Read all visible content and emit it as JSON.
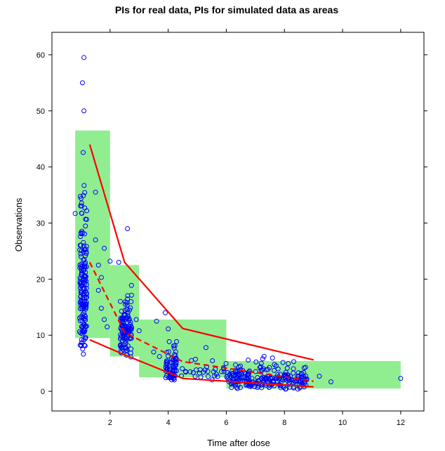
{
  "chart_data": {
    "type": "scatter",
    "title": "PIs for real data, PIs for simulated data as areas",
    "xlabel": "Time after dose",
    "ylabel": "Observations",
    "xlim": [
      0.0,
      12.8
    ],
    "ylim": [
      -3.5,
      64.0
    ],
    "x_ticks": [
      2,
      4,
      6,
      8,
      10,
      12
    ],
    "y_ticks": [
      0,
      10,
      20,
      30,
      40,
      50,
      60
    ],
    "colors": {
      "points": "#0000ff",
      "lines": "#ff0000",
      "areas": "#90ee90"
    },
    "simulated_pi_areas": [
      {
        "x": [
          0.8,
          2.0
        ],
        "y": [
          9.5,
          46.5
        ]
      },
      {
        "x": [
          2.0,
          3.0
        ],
        "y": [
          6.2,
          22.5
        ]
      },
      {
        "x": [
          3.0,
          6.0
        ],
        "y": [
          2.5,
          12.8
        ]
      },
      {
        "x": [
          6.0,
          12.0
        ],
        "y": [
          0.5,
          5.4
        ]
      }
    ],
    "real_data_pi_lines": [
      {
        "name": "upper",
        "style": "solid",
        "x": [
          1.3,
          2.5,
          4.5,
          9.0
        ],
        "y": [
          44.0,
          23.0,
          11.2,
          5.6
        ]
      },
      {
        "name": "median",
        "style": "dashed",
        "x": [
          1.3,
          2.5,
          4.5,
          9.0
        ],
        "y": [
          23.0,
          10.5,
          5.3,
          1.8
        ]
      },
      {
        "name": "lower",
        "style": "solid",
        "x": [
          1.3,
          2.5,
          4.5,
          9.0
        ],
        "y": [
          9.2,
          6.5,
          2.3,
          0.8
        ]
      }
    ],
    "observation_clusters": [
      {
        "x": [
          0.95,
          1.2
        ],
        "y": [
          6.3,
          44.5
        ],
        "n": 170
      },
      {
        "x": [
          2.35,
          2.75
        ],
        "y": [
          5.8,
          23.0
        ],
        "n": 110
      },
      {
        "x": [
          3.9,
          4.3
        ],
        "y": [
          1.8,
          11.5
        ],
        "n": 70
      },
      {
        "x": [
          4.3,
          6.0
        ],
        "y": [
          2.0,
          7.0
        ],
        "n": 28
      },
      {
        "x": [
          6.0,
          8.8
        ],
        "y": [
          0.3,
          6.5
        ],
        "n": 230
      }
    ],
    "observation_points": [
      {
        "x": 1.1,
        "y": 59.5
      },
      {
        "x": 1.05,
        "y": 55.0
      },
      {
        "x": 1.1,
        "y": 50.0
      },
      {
        "x": 0.8,
        "y": 31.7
      },
      {
        "x": 1.5,
        "y": 35.5
      },
      {
        "x": 1.6,
        "y": 22.5
      },
      {
        "x": 1.7,
        "y": 20.3
      },
      {
        "x": 1.6,
        "y": 18.0
      },
      {
        "x": 1.8,
        "y": 12.8
      },
      {
        "x": 1.9,
        "y": 11.5
      },
      {
        "x": 1.7,
        "y": 14.8
      },
      {
        "x": 2.0,
        "y": 23.2
      },
      {
        "x": 1.5,
        "y": 27.0
      },
      {
        "x": 1.8,
        "y": 25.5
      },
      {
        "x": 2.3,
        "y": 23.0
      },
      {
        "x": 2.6,
        "y": 29.0
      },
      {
        "x": 2.9,
        "y": 12.8
      },
      {
        "x": 3.0,
        "y": 10.8
      },
      {
        "x": 3.5,
        "y": 7.0
      },
      {
        "x": 3.6,
        "y": 12.5
      },
      {
        "x": 3.7,
        "y": 6.2
      },
      {
        "x": 3.9,
        "y": 14.0
      },
      {
        "x": 4.8,
        "y": 5.5
      },
      {
        "x": 5.3,
        "y": 7.8
      },
      {
        "x": 5.9,
        "y": 4.2
      },
      {
        "x": 9.2,
        "y": 2.7
      },
      {
        "x": 9.6,
        "y": 1.7
      },
      {
        "x": 12.0,
        "y": 2.3
      }
    ]
  }
}
